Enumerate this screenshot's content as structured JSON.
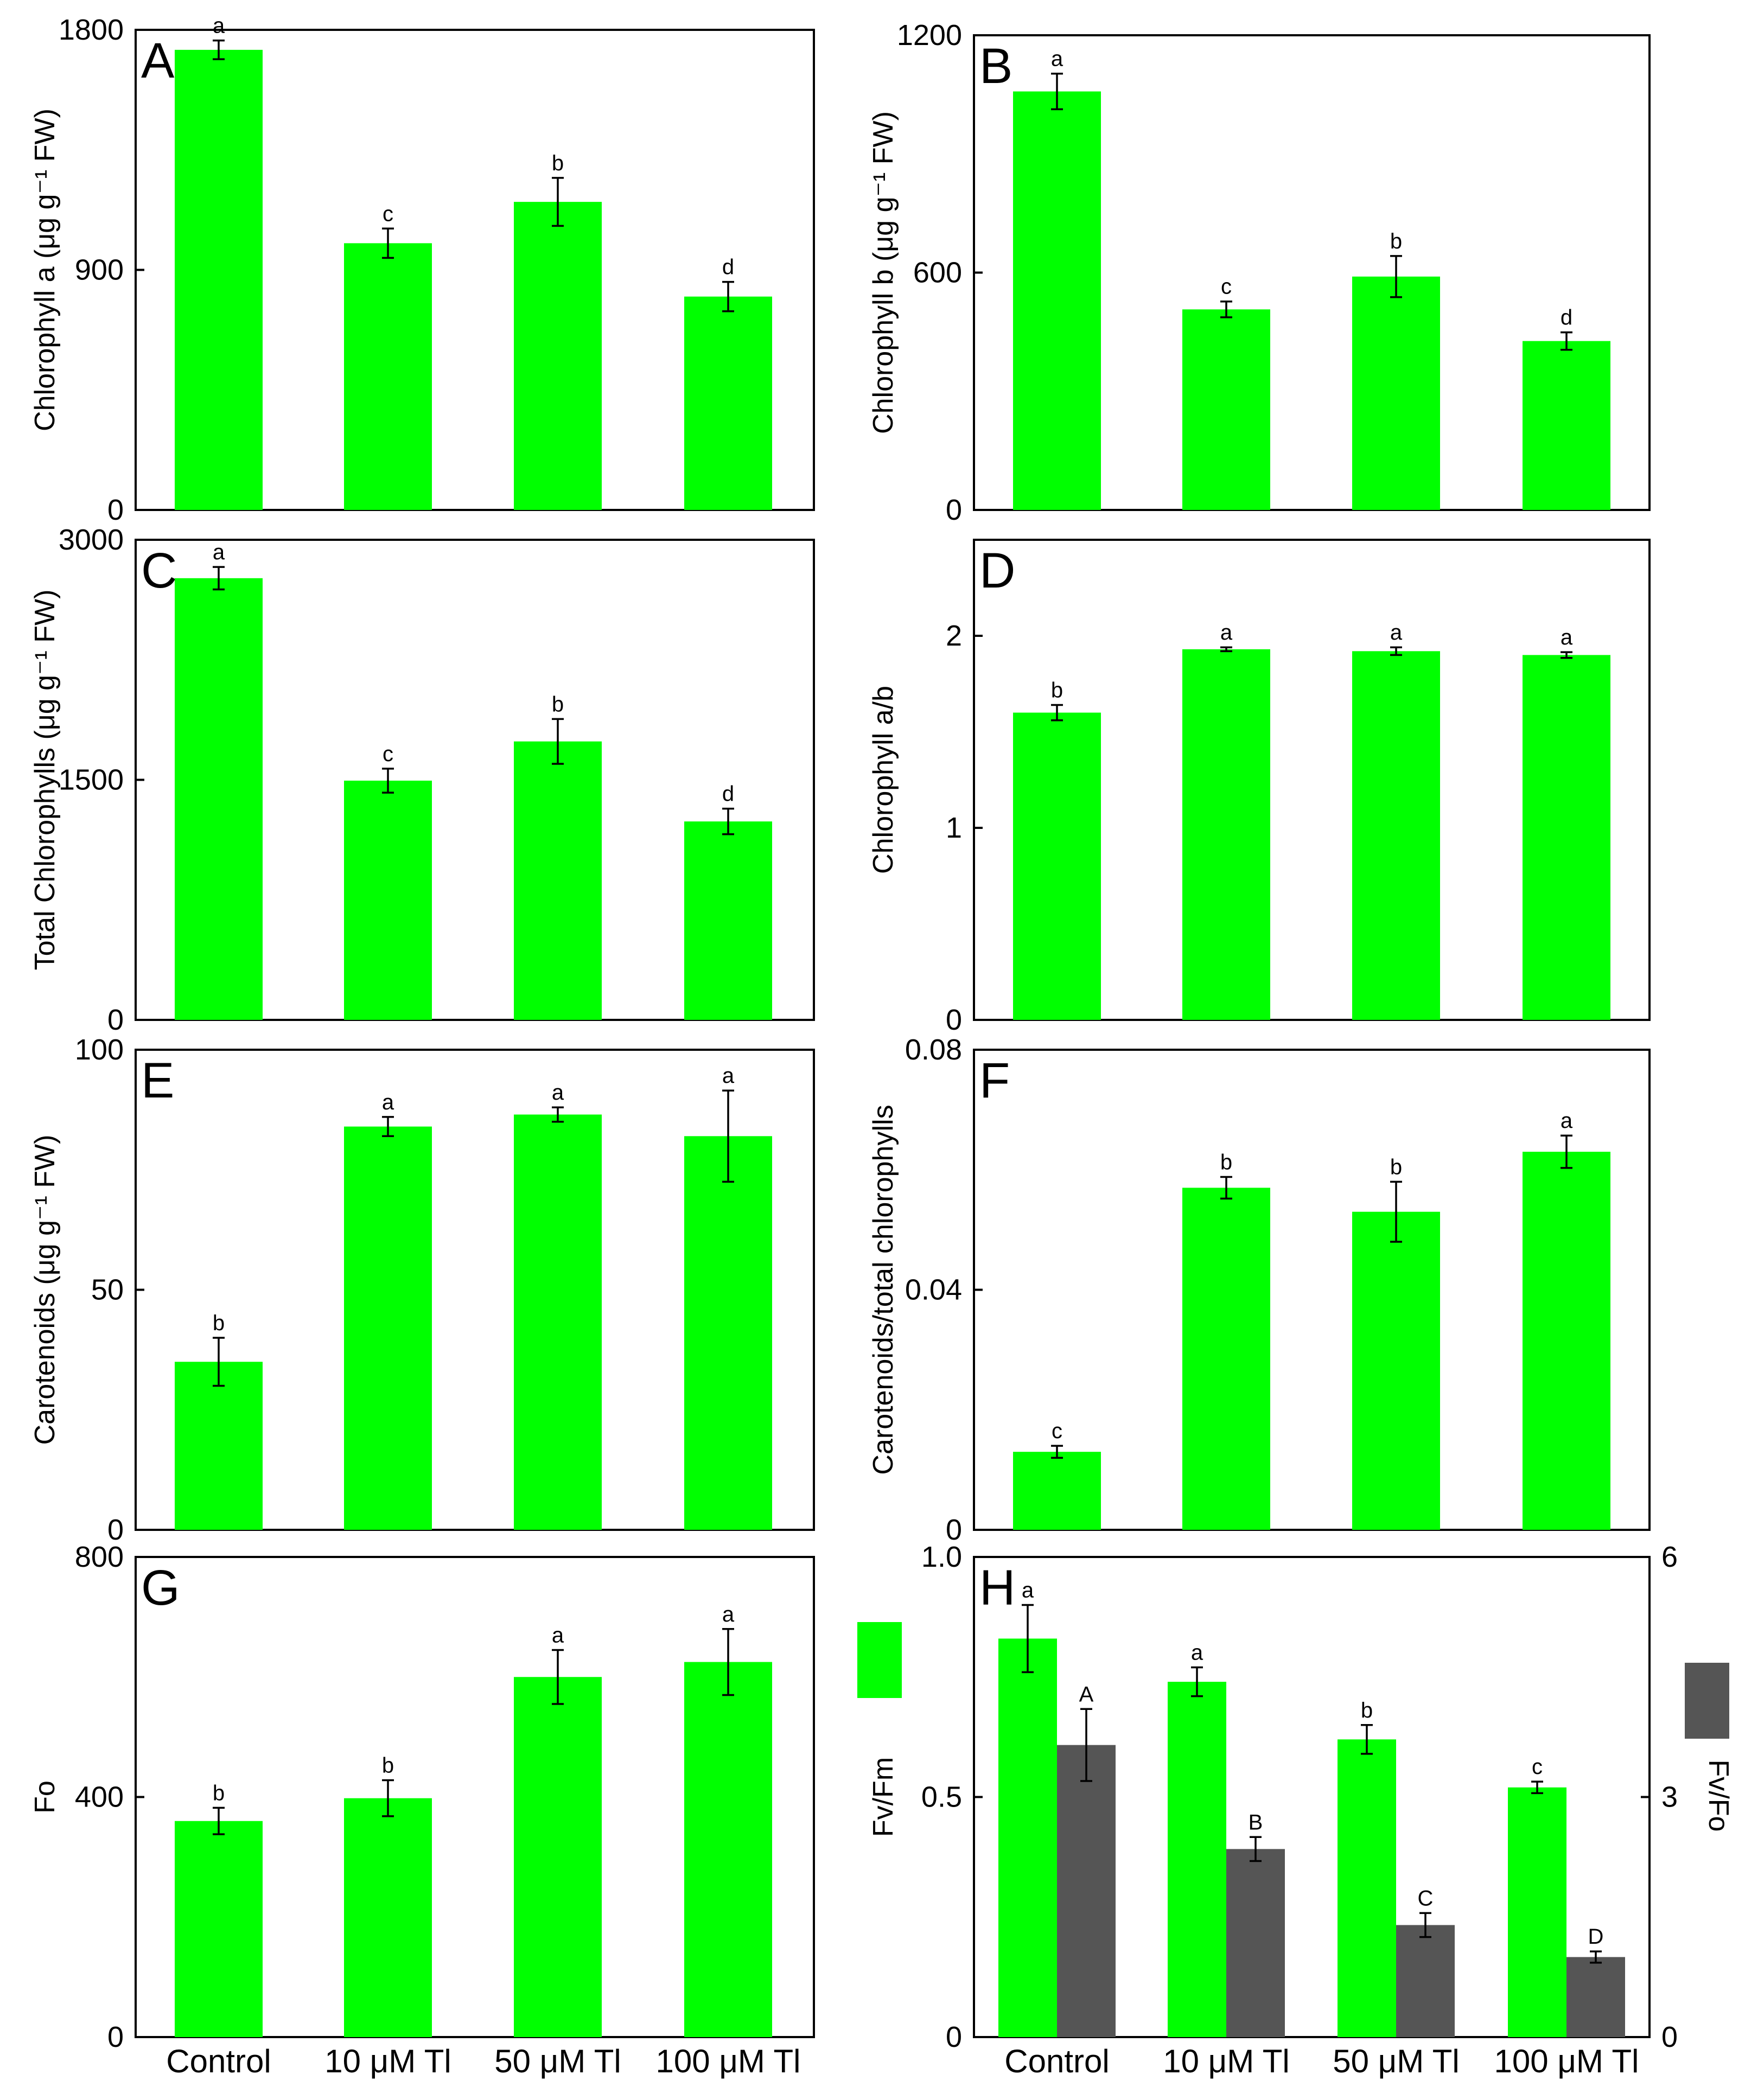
{
  "figure": {
    "background": "#ffffff",
    "bar_color": "#00ff00",
    "secondary_bar_color": "#555555",
    "categories": [
      "Control",
      "10 μM Tl",
      "50 μM Tl",
      "100 μM Tl"
    ]
  },
  "chart_data": [
    {
      "type": "bar",
      "panel": "A",
      "ylabel": "Chlorophyll a (μg g⁻¹ FW)",
      "ylim": [
        0,
        1800
      ],
      "yticks": [
        "0",
        "900",
        "1800"
      ],
      "categories": [
        "Control",
        "10 μM Tl",
        "50 μM Tl",
        "100 μM Tl"
      ],
      "values": [
        1725,
        1000,
        1155,
        800
      ],
      "errors": [
        35,
        55,
        90,
        55
      ],
      "letters": [
        "a",
        "c",
        "b",
        "d"
      ]
    },
    {
      "type": "bar",
      "panel": "B",
      "ylabel": "Chlorophyll b (μg g⁻¹ FW)",
      "ylim": [
        0,
        1200
      ],
      "yticks": [
        "0",
        "600",
        "1200"
      ],
      "categories": [
        "Control",
        "10 μM Tl",
        "50 μM Tl",
        "100 μM Tl"
      ],
      "values": [
        1058,
        507,
        590,
        427
      ],
      "errors": [
        45,
        20,
        52,
        22
      ],
      "letters": [
        "a",
        "c",
        "b",
        "d"
      ]
    },
    {
      "type": "bar",
      "panel": "C",
      "ylabel": "Total Chlorophylls (μg g⁻¹ FW)",
      "ylim": [
        0,
        3000
      ],
      "yticks": [
        "0",
        "1500",
        "3000"
      ],
      "categories": [
        "Control",
        "10 μM Tl",
        "50 μM Tl",
        "100 μM Tl"
      ],
      "values": [
        2760,
        1495,
        1740,
        1240
      ],
      "errors": [
        70,
        75,
        140,
        80
      ],
      "letters": [
        "a",
        "c",
        "b",
        "d"
      ]
    },
    {
      "type": "bar",
      "panel": "D",
      "ylabel": "Chlorophyll a/b",
      "ylim": [
        0,
        2.5
      ],
      "yticks": [
        "0",
        "1",
        "2"
      ],
      "categories": [
        "Control",
        "10 μM Tl",
        "50 μM Tl",
        "100 μM Tl"
      ],
      "values": [
        1.6,
        1.93,
        1.92,
        1.9
      ],
      "errors": [
        0.04,
        0.01,
        0.02,
        0.015
      ],
      "letters": [
        "b",
        "a",
        "a",
        "a"
      ]
    },
    {
      "type": "bar",
      "panel": "E",
      "ylabel": "Carotenoids (μg g⁻¹ FW)",
      "ylim": [
        0,
        100
      ],
      "yticks": [
        "0",
        "50",
        "100"
      ],
      "categories": [
        "Control",
        "10 μM Tl",
        "50 μM Tl",
        "100 μM Tl"
      ],
      "values": [
        35,
        84,
        86.5,
        82
      ],
      "errors": [
        5,
        2,
        1.5,
        9.5
      ],
      "letters": [
        "b",
        "a",
        "a",
        "a"
      ]
    },
    {
      "type": "bar",
      "panel": "F",
      "ylabel": "Carotenoids/total chlorophylls",
      "ylim": [
        0,
        0.08
      ],
      "yticks": [
        "0",
        "0.04",
        "0.08"
      ],
      "categories": [
        "Control",
        "10 μM Tl",
        "50 μM Tl",
        "100 μM Tl"
      ],
      "values": [
        0.013,
        0.057,
        0.053,
        0.063
      ],
      "errors": [
        0.001,
        0.0018,
        0.005,
        0.0027
      ],
      "letters": [
        "c",
        "b",
        "b",
        "a"
      ]
    },
    {
      "type": "bar",
      "panel": "G",
      "ylabel": "Fo",
      "ylim": [
        0,
        800
      ],
      "yticks": [
        "0",
        "400",
        "800"
      ],
      "categories": [
        "Control",
        "10 μM Tl",
        "50 μM Tl",
        "100 μM Tl"
      ],
      "values": [
        360,
        398,
        600,
        625
      ],
      "errors": [
        22,
        30,
        45,
        55
      ],
      "letters": [
        "b",
        "b",
        "a",
        "a"
      ]
    },
    {
      "type": "bar",
      "panel": "H",
      "ylabel": "Fv/Fm",
      "ylim": [
        0,
        1.0
      ],
      "yticks": [
        "0",
        "0.5",
        "1.0"
      ],
      "ylabel_right": "Fv/Fo",
      "ylim_right": [
        0,
        6
      ],
      "yticks_right": [
        "0",
        "3",
        "6"
      ],
      "categories": [
        "Control",
        "10 μM Tl",
        "50 μM Tl",
        "100 μM Tl"
      ],
      "series": [
        {
          "name": "Fv/Fm",
          "axis": "left",
          "color": "#00ff00",
          "values": [
            0.83,
            0.74,
            0.62,
            0.52
          ],
          "errors": [
            0.07,
            0.03,
            0.03,
            0.012
          ],
          "letters": [
            "a",
            "a",
            "b",
            "c"
          ]
        },
        {
          "name": "Fv/Fo",
          "axis": "right",
          "color": "#555555",
          "values": [
            3.65,
            2.35,
            1.4,
            1.0
          ],
          "errors": [
            0.45,
            0.15,
            0.15,
            0.07
          ],
          "letters": [
            "A",
            "B",
            "C",
            "D"
          ]
        }
      ]
    }
  ]
}
